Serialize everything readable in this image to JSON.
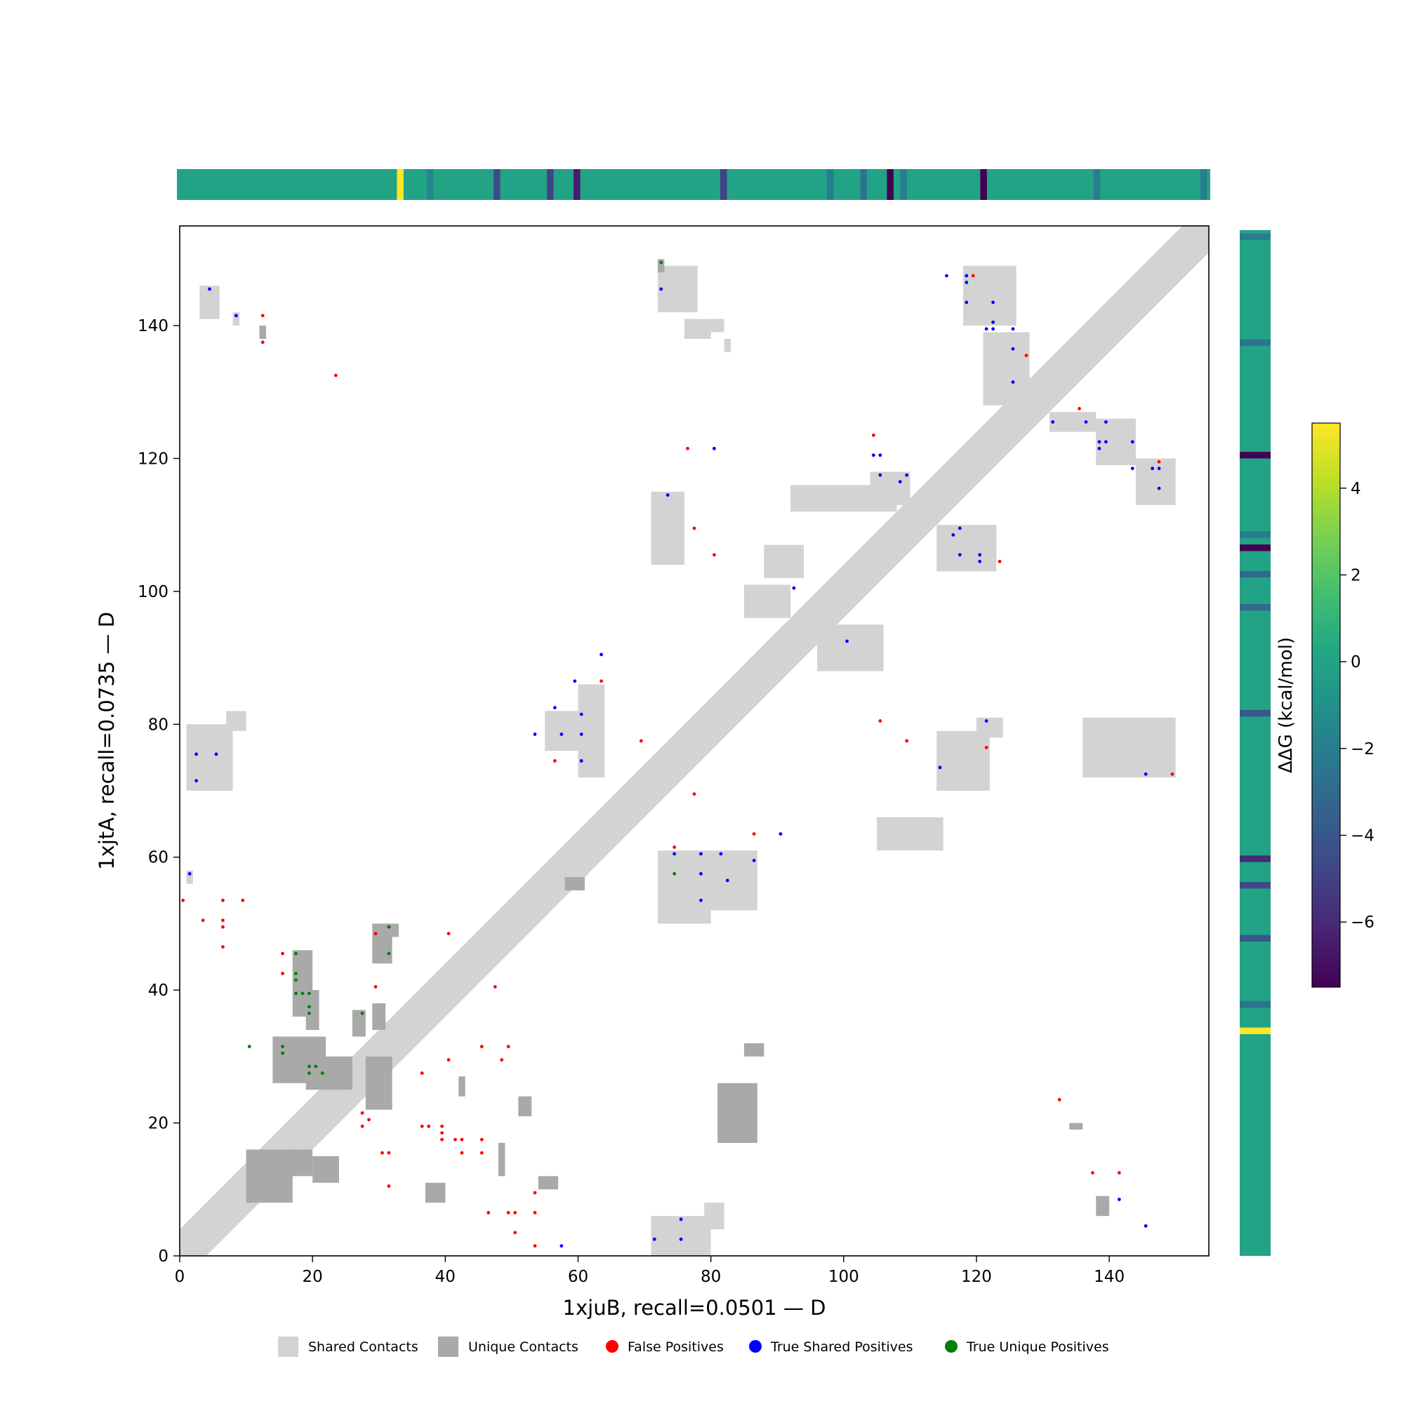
{
  "chart_data": {
    "type": "heatmap",
    "xlabel": "1xjuB, recall=0.0501 — D",
    "ylabel": "1xjtA, recall=0.0735 — D",
    "xlim": [
      0,
      155
    ],
    "ylim": [
      0,
      155
    ],
    "xticks": [
      0,
      20,
      40,
      60,
      80,
      100,
      120,
      140
    ],
    "yticks": [
      0,
      20,
      40,
      60,
      80,
      100,
      120,
      140
    ],
    "colorbar": {
      "label": "ΔΔG (kcal/mol)",
      "range": [
        -7.5,
        5.5
      ],
      "ticks": [
        4,
        2,
        0,
        -2,
        -4,
        -6
      ],
      "tick_labels": [
        "4",
        "2",
        "0",
        "−2",
        "−4",
        "−6"
      ],
      "colormap": "viridis"
    },
    "top_strip": {
      "base_value": 0,
      "highlights": [
        {
          "pos": 33.5,
          "value": 5.5
        },
        {
          "pos": 38,
          "value": -1.5
        },
        {
          "pos": 48,
          "value": -4.5
        },
        {
          "pos": 56,
          "value": -5
        },
        {
          "pos": 60,
          "value": -6.5
        },
        {
          "pos": 82,
          "value": -5
        },
        {
          "pos": 98,
          "value": -2
        },
        {
          "pos": 103,
          "value": -2.5
        },
        {
          "pos": 107,
          "value": -7.5
        },
        {
          "pos": 109,
          "value": -2
        },
        {
          "pos": 121,
          "value": -7.5
        },
        {
          "pos": 138,
          "value": -2
        },
        {
          "pos": 154,
          "value": -2
        }
      ]
    },
    "right_strip": {
      "base_value": 0,
      "highlights": [
        {
          "pos": 34,
          "value": 5.5
        },
        {
          "pos": 38,
          "value": -2.5
        },
        {
          "pos": 48,
          "value": -4
        },
        {
          "pos": 56,
          "value": -4.5
        },
        {
          "pos": 60,
          "value": -6
        },
        {
          "pos": 82,
          "value": -4
        },
        {
          "pos": 98,
          "value": -3
        },
        {
          "pos": 103,
          "value": -3
        },
        {
          "pos": 107,
          "value": -7.5
        },
        {
          "pos": 109,
          "value": -2
        },
        {
          "pos": 121,
          "value": -7.5
        },
        {
          "pos": 138,
          "value": -2.5
        },
        {
          "pos": 154,
          "value": -2
        }
      ]
    },
    "shared_contacts": {
      "diagonal_band": {
        "from": 0,
        "to": 155,
        "halfwidth": 4
      },
      "rects": [
        [
          72,
          142,
          78,
          149
        ],
        [
          76,
          138,
          80,
          141
        ],
        [
          80,
          139,
          82,
          141
        ],
        [
          82,
          136,
          83,
          138
        ],
        [
          104,
          113,
          110,
          118
        ],
        [
          118,
          140,
          126,
          149
        ],
        [
          121,
          128,
          128,
          139
        ],
        [
          131,
          124,
          138,
          127
        ],
        [
          138,
          119,
          144,
          126
        ],
        [
          144,
          113,
          150,
          120
        ],
        [
          92,
          112,
          108,
          116
        ],
        [
          71,
          104,
          76,
          115
        ],
        [
          88,
          102,
          94,
          107
        ],
        [
          96,
          88,
          106,
          95
        ],
        [
          85,
          96,
          92,
          101
        ],
        [
          114,
          103,
          123,
          110
        ],
        [
          60,
          72,
          64,
          86
        ],
        [
          55,
          76,
          62,
          82
        ],
        [
          1,
          70,
          8,
          80
        ],
        [
          7,
          79,
          10,
          82
        ],
        [
          72,
          50,
          80,
          61
        ],
        [
          80,
          52,
          87,
          61
        ],
        [
          71,
          0,
          80,
          6
        ],
        [
          79,
          4,
          82,
          8
        ],
        [
          114,
          70,
          122,
          79
        ],
        [
          120,
          78,
          124,
          81
        ],
        [
          136,
          72,
          150,
          81
        ],
        [
          105,
          61,
          115,
          66
        ],
        [
          1,
          56,
          2,
          58
        ],
        [
          3,
          141,
          6,
          146
        ],
        [
          8,
          140,
          9,
          142
        ],
        [
          123,
          123,
          125,
          125
        ]
      ]
    },
    "unique_contacts": {
      "rects": [
        [
          14,
          26,
          22,
          33
        ],
        [
          19,
          25,
          26,
          30
        ],
        [
          17,
          36,
          20,
          46
        ],
        [
          19,
          34,
          21,
          40
        ],
        [
          26,
          33,
          28,
          37
        ],
        [
          28,
          22,
          32,
          30
        ],
        [
          29,
          44,
          32,
          50
        ],
        [
          31,
          48,
          33,
          50
        ],
        [
          10,
          8,
          17,
          16
        ],
        [
          16,
          12,
          20,
          16
        ],
        [
          20,
          11,
          24,
          15
        ],
        [
          48,
          12,
          49,
          17
        ],
        [
          54,
          10,
          57,
          12
        ],
        [
          51,
          21,
          53,
          24
        ],
        [
          81,
          17,
          87,
          26
        ],
        [
          85,
          30,
          88,
          32
        ],
        [
          134,
          19,
          136,
          20
        ],
        [
          138,
          6,
          140,
          9
        ],
        [
          12,
          138,
          13,
          140
        ],
        [
          72,
          148,
          73,
          150
        ],
        [
          58,
          55,
          61,
          57
        ],
        [
          29,
          34,
          31,
          38
        ],
        [
          42,
          24,
          43,
          27
        ],
        [
          37,
          8,
          40,
          11
        ]
      ]
    },
    "false_positives": [
      [
        0,
        53
      ],
      [
        3,
        50
      ],
      [
        6,
        53
      ],
      [
        6,
        50
      ],
      [
        6,
        49
      ],
      [
        6,
        46
      ],
      [
        9,
        53
      ],
      [
        12,
        141
      ],
      [
        12,
        137
      ],
      [
        23,
        132
      ],
      [
        29,
        48
      ],
      [
        29,
        40
      ],
      [
        31,
        49
      ],
      [
        36,
        27
      ],
      [
        36,
        19
      ],
      [
        37,
        19
      ],
      [
        39,
        19
      ],
      [
        39,
        18
      ],
      [
        39,
        17
      ],
      [
        40,
        48
      ],
      [
        40,
        29
      ],
      [
        41,
        17
      ],
      [
        42,
        17
      ],
      [
        42,
        15
      ],
      [
        45,
        17
      ],
      [
        45,
        15
      ],
      [
        45,
        31
      ],
      [
        46,
        6
      ],
      [
        47,
        40
      ],
      [
        48,
        29
      ],
      [
        49,
        31
      ],
      [
        49,
        6
      ],
      [
        50,
        6
      ],
      [
        50,
        3
      ],
      [
        53,
        9
      ],
      [
        53,
        6
      ],
      [
        53,
        1
      ],
      [
        56,
        74
      ],
      [
        60,
        74
      ],
      [
        63,
        86
      ],
      [
        69,
        77
      ],
      [
        74,
        61
      ],
      [
        76,
        121
      ],
      [
        77,
        109
      ],
      [
        77,
        69
      ],
      [
        80,
        105
      ],
      [
        86,
        63
      ],
      [
        105,
        80
      ],
      [
        109,
        77
      ],
      [
        104,
        123
      ],
      [
        119,
        147
      ],
      [
        121,
        76
      ],
      [
        123,
        104
      ],
      [
        127,
        135
      ],
      [
        132,
        23
      ],
      [
        135,
        127
      ],
      [
        137,
        12
      ],
      [
        141,
        12
      ],
      [
        147,
        119
      ],
      [
        149,
        72
      ],
      [
        27,
        21
      ],
      [
        28,
        20
      ],
      [
        27,
        19
      ],
      [
        15,
        45
      ],
      [
        15,
        42
      ],
      [
        30,
        15
      ],
      [
        31,
        15
      ],
      [
        31,
        10
      ]
    ],
    "true_shared_positives": [
      [
        4,
        145
      ],
      [
        8,
        141
      ],
      [
        2,
        75
      ],
      [
        2,
        71
      ],
      [
        5,
        75
      ],
      [
        1,
        57
      ],
      [
        53,
        78
      ],
      [
        56,
        82
      ],
      [
        57,
        78
      ],
      [
        59,
        86
      ],
      [
        60,
        81
      ],
      [
        60,
        78
      ],
      [
        60,
        74
      ],
      [
        63,
        90
      ],
      [
        73,
        114
      ],
      [
        72,
        145
      ],
      [
        80,
        121
      ],
      [
        74,
        60
      ],
      [
        78,
        60
      ],
      [
        81,
        60
      ],
      [
        78,
        57
      ],
      [
        82,
        56
      ],
      [
        86,
        59
      ],
      [
        78,
        53
      ],
      [
        90,
        63
      ],
      [
        92,
        100
      ],
      [
        100,
        92
      ],
      [
        57,
        1
      ],
      [
        71,
        2
      ],
      [
        75,
        5
      ],
      [
        75,
        2
      ],
      [
        104,
        120
      ],
      [
        105,
        120
      ],
      [
        105,
        117
      ],
      [
        108,
        116
      ],
      [
        109,
        117
      ],
      [
        114,
        73
      ],
      [
        115,
        147
      ],
      [
        116,
        108
      ],
      [
        117,
        109
      ],
      [
        117,
        105
      ],
      [
        118,
        143
      ],
      [
        118,
        147
      ],
      [
        118,
        146
      ],
      [
        120,
        105
      ],
      [
        120,
        104
      ],
      [
        121,
        80
      ],
      [
        121,
        139
      ],
      [
        122,
        143
      ],
      [
        122,
        140
      ],
      [
        122,
        139
      ],
      [
        125,
        139
      ],
      [
        125,
        136
      ],
      [
        125,
        131
      ],
      [
        131,
        125
      ],
      [
        136,
        125
      ],
      [
        139,
        125
      ],
      [
        138,
        122
      ],
      [
        138,
        121
      ],
      [
        139,
        122
      ],
      [
        143,
        122
      ],
      [
        143,
        118
      ],
      [
        146,
        118
      ],
      [
        147,
        118
      ],
      [
        147,
        115
      ],
      [
        145,
        72
      ],
      [
        141,
        8
      ],
      [
        145,
        4
      ]
    ],
    "true_unique_positives": [
      [
        10,
        31
      ],
      [
        15,
        31
      ],
      [
        15,
        30
      ],
      [
        17,
        45
      ],
      [
        17,
        42
      ],
      [
        17,
        41
      ],
      [
        17,
        39
      ],
      [
        18,
        39
      ],
      [
        19,
        39
      ],
      [
        19,
        37
      ],
      [
        19,
        36
      ],
      [
        19,
        28
      ],
      [
        19,
        27
      ],
      [
        20,
        28
      ],
      [
        21,
        27
      ],
      [
        27,
        36
      ],
      [
        31,
        49
      ],
      [
        31,
        45
      ],
      [
        72,
        149
      ],
      [
        74,
        57
      ]
    ],
    "legend": {
      "placement": "bottom",
      "items": [
        {
          "label": "Shared Contacts",
          "kind": "square",
          "color": "#d3d3d3"
        },
        {
          "label": "Unique Contacts",
          "kind": "square",
          "color": "#a9a9a9"
        },
        {
          "label": "False Positives",
          "kind": "dot",
          "color": "#ff0000"
        },
        {
          "label": "True Shared Positives",
          "kind": "dot",
          "color": "#0000ff"
        },
        {
          "label": "True Unique Positives",
          "kind": "dot",
          "color": "#008000"
        }
      ]
    },
    "colors": {
      "shared": "#d3d3d3",
      "unique": "#a9a9a9",
      "false_positive": "#ff0000",
      "true_shared_positive": "#0000ff",
      "true_unique_positive": "#008000"
    }
  }
}
